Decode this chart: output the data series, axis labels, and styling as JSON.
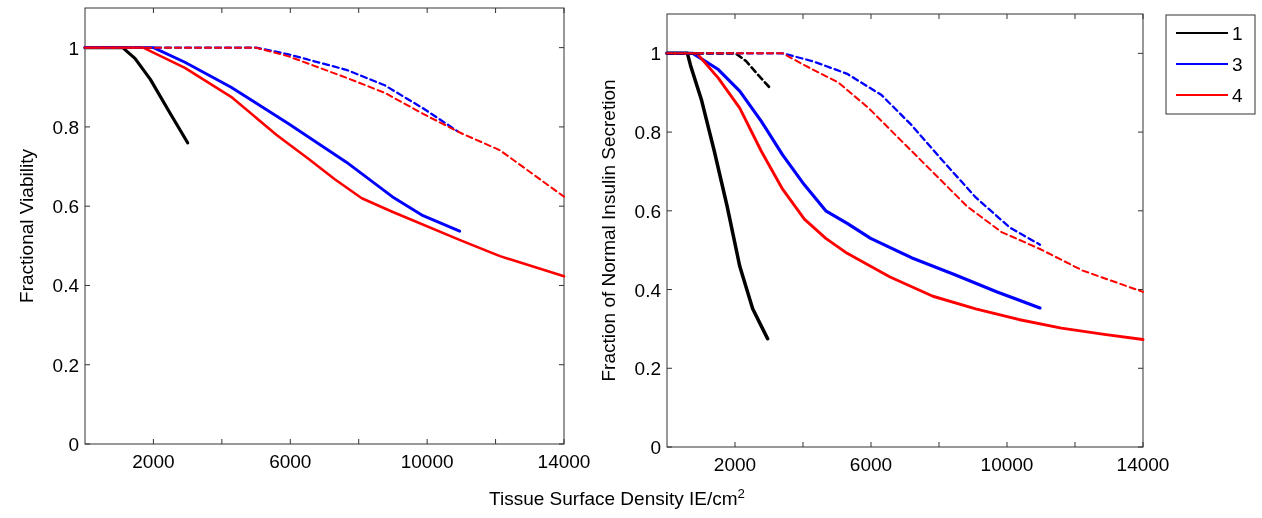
{
  "chart_data": [
    {
      "type": "line",
      "ylabel": "Fractional Viability",
      "xlabel": "Tissue Surface Density IE/cm$^{2}$",
      "xlim": [
        0,
        14000
      ],
      "ylim": [
        0,
        1.1
      ],
      "xticks": [
        2000,
        {
          "value": 4000,
          "label": null
        },
        6000,
        {
          "value": 8000,
          "label": null
        },
        10000,
        {
          "value": 12000,
          "label": null
        },
        14000
      ],
      "yticks": [
        0,
        0.2,
        0.4,
        0.6,
        0.8,
        1
      ],
      "series": [
        {
          "color": "#000000",
          "line_style": "solid",
          "x": [
            0,
            1100,
            1460,
            1910,
            2470,
            3000
          ],
          "values": [
            1,
            1,
            0.973,
            0.92,
            0.837,
            0.76
          ]
        },
        {
          "color": "#0000ff",
          "line_style": "solid",
          "x": [
            0,
            2000,
            2920,
            4270,
            5950,
            7640,
            8980,
            9880,
            10950
          ],
          "values": [
            1,
            1,
            0.963,
            0.9,
            0.808,
            0.711,
            0.624,
            0.576,
            0.537
          ]
        },
        {
          "color": "#ff0000",
          "line_style": "solid",
          "x": [
            0,
            1700,
            2920,
            4270,
            5610,
            6510,
            7300,
            8090,
            8980,
            11000,
            12130,
            14000
          ],
          "values": [
            1,
            1,
            0.949,
            0.876,
            0.779,
            0.721,
            0.668,
            0.62,
            0.586,
            0.513,
            0.474,
            0.423
          ]
        },
        {
          "color": "#0000ff",
          "line_style": "dashed",
          "x": [
            0,
            5000,
            5950,
            7640,
            8760,
            9880,
            10890
          ],
          "values": [
            1,
            1,
            0.983,
            0.944,
            0.905,
            0.847,
            0.789
          ]
        },
        {
          "color": "#ff0000",
          "line_style": "dashed",
          "x": [
            0,
            5000,
            5950,
            7640,
            8760,
            9880,
            11000,
            12130,
            14000
          ],
          "values": [
            1,
            1,
            0.978,
            0.924,
            0.886,
            0.833,
            0.784,
            0.741,
            0.624
          ]
        }
      ]
    },
    {
      "type": "line",
      "ylabel": "Fraction of Normal Insulin Secretion",
      "xlim": [
        0,
        14000
      ],
      "ylim": [
        0,
        1.1
      ],
      "legend": "top right",
      "xticks": [
        2000,
        {
          "value": 4000,
          "label": null
        },
        6000,
        {
          "value": 8000,
          "label": null
        },
        10000,
        {
          "value": 12000,
          "label": null
        },
        14000
      ],
      "yticks": [
        0,
        0.2,
        0.4,
        0.6,
        0.8,
        1
      ],
      "series": [
        {
          "name": "1",
          "color": "#000000",
          "line_style": "solid",
          "x": [
            0,
            600,
            690,
            1010,
            1390,
            1770,
            2140,
            2520,
            2960
          ],
          "values": [
            1,
            1,
            0.97,
            0.883,
            0.752,
            0.611,
            0.459,
            0.351,
            0.275
          ]
        },
        {
          "name": "3",
          "color": "#0000ff",
          "line_style": "solid",
          "x": [
            0,
            760,
            1510,
            2140,
            2770,
            3400,
            4040,
            4670,
            5300,
            5990,
            7190,
            8450,
            9710,
            10970
          ],
          "values": [
            1,
            1,
            0.959,
            0.904,
            0.828,
            0.742,
            0.666,
            0.6,
            0.568,
            0.53,
            0.481,
            0.438,
            0.394,
            0.353
          ]
        },
        {
          "name": "4",
          "color": "#ff0000",
          "line_style": "solid",
          "x": [
            0,
            880,
            1510,
            2140,
            2770,
            3400,
            4040,
            4670,
            5300,
            6560,
            7820,
            9080,
            10340,
            11600,
            12860,
            14000
          ],
          "values": [
            1,
            1,
            0.937,
            0.861,
            0.752,
            0.655,
            0.579,
            0.53,
            0.492,
            0.432,
            0.383,
            0.351,
            0.324,
            0.302,
            0.286,
            0.273
          ]
        },
        {
          "color": "#000000",
          "line_style": "dashed",
          "x": [
            0,
            2020,
            2330,
            2650,
            3000
          ],
          "values": [
            1,
            1,
            0.98,
            0.948,
            0.915
          ]
        },
        {
          "color": "#0000ff",
          "line_style": "dashed",
          "x": [
            0,
            3400,
            4290,
            5300,
            6310,
            7190,
            8070,
            9080,
            10090,
            10970
          ],
          "values": [
            1,
            1,
            0.98,
            0.948,
            0.894,
            0.818,
            0.731,
            0.634,
            0.557,
            0.514
          ]
        },
        {
          "color": "#ff0000",
          "line_style": "dashed",
          "x": [
            0,
            3400,
            4040,
            5040,
            5930,
            6810,
            7820,
            8830,
            9840,
            10970,
            12230,
            14000
          ],
          "values": [
            1,
            1,
            0.97,
            0.926,
            0.861,
            0.785,
            0.698,
            0.611,
            0.546,
            0.503,
            0.448,
            0.394
          ]
        }
      ]
    }
  ]
}
